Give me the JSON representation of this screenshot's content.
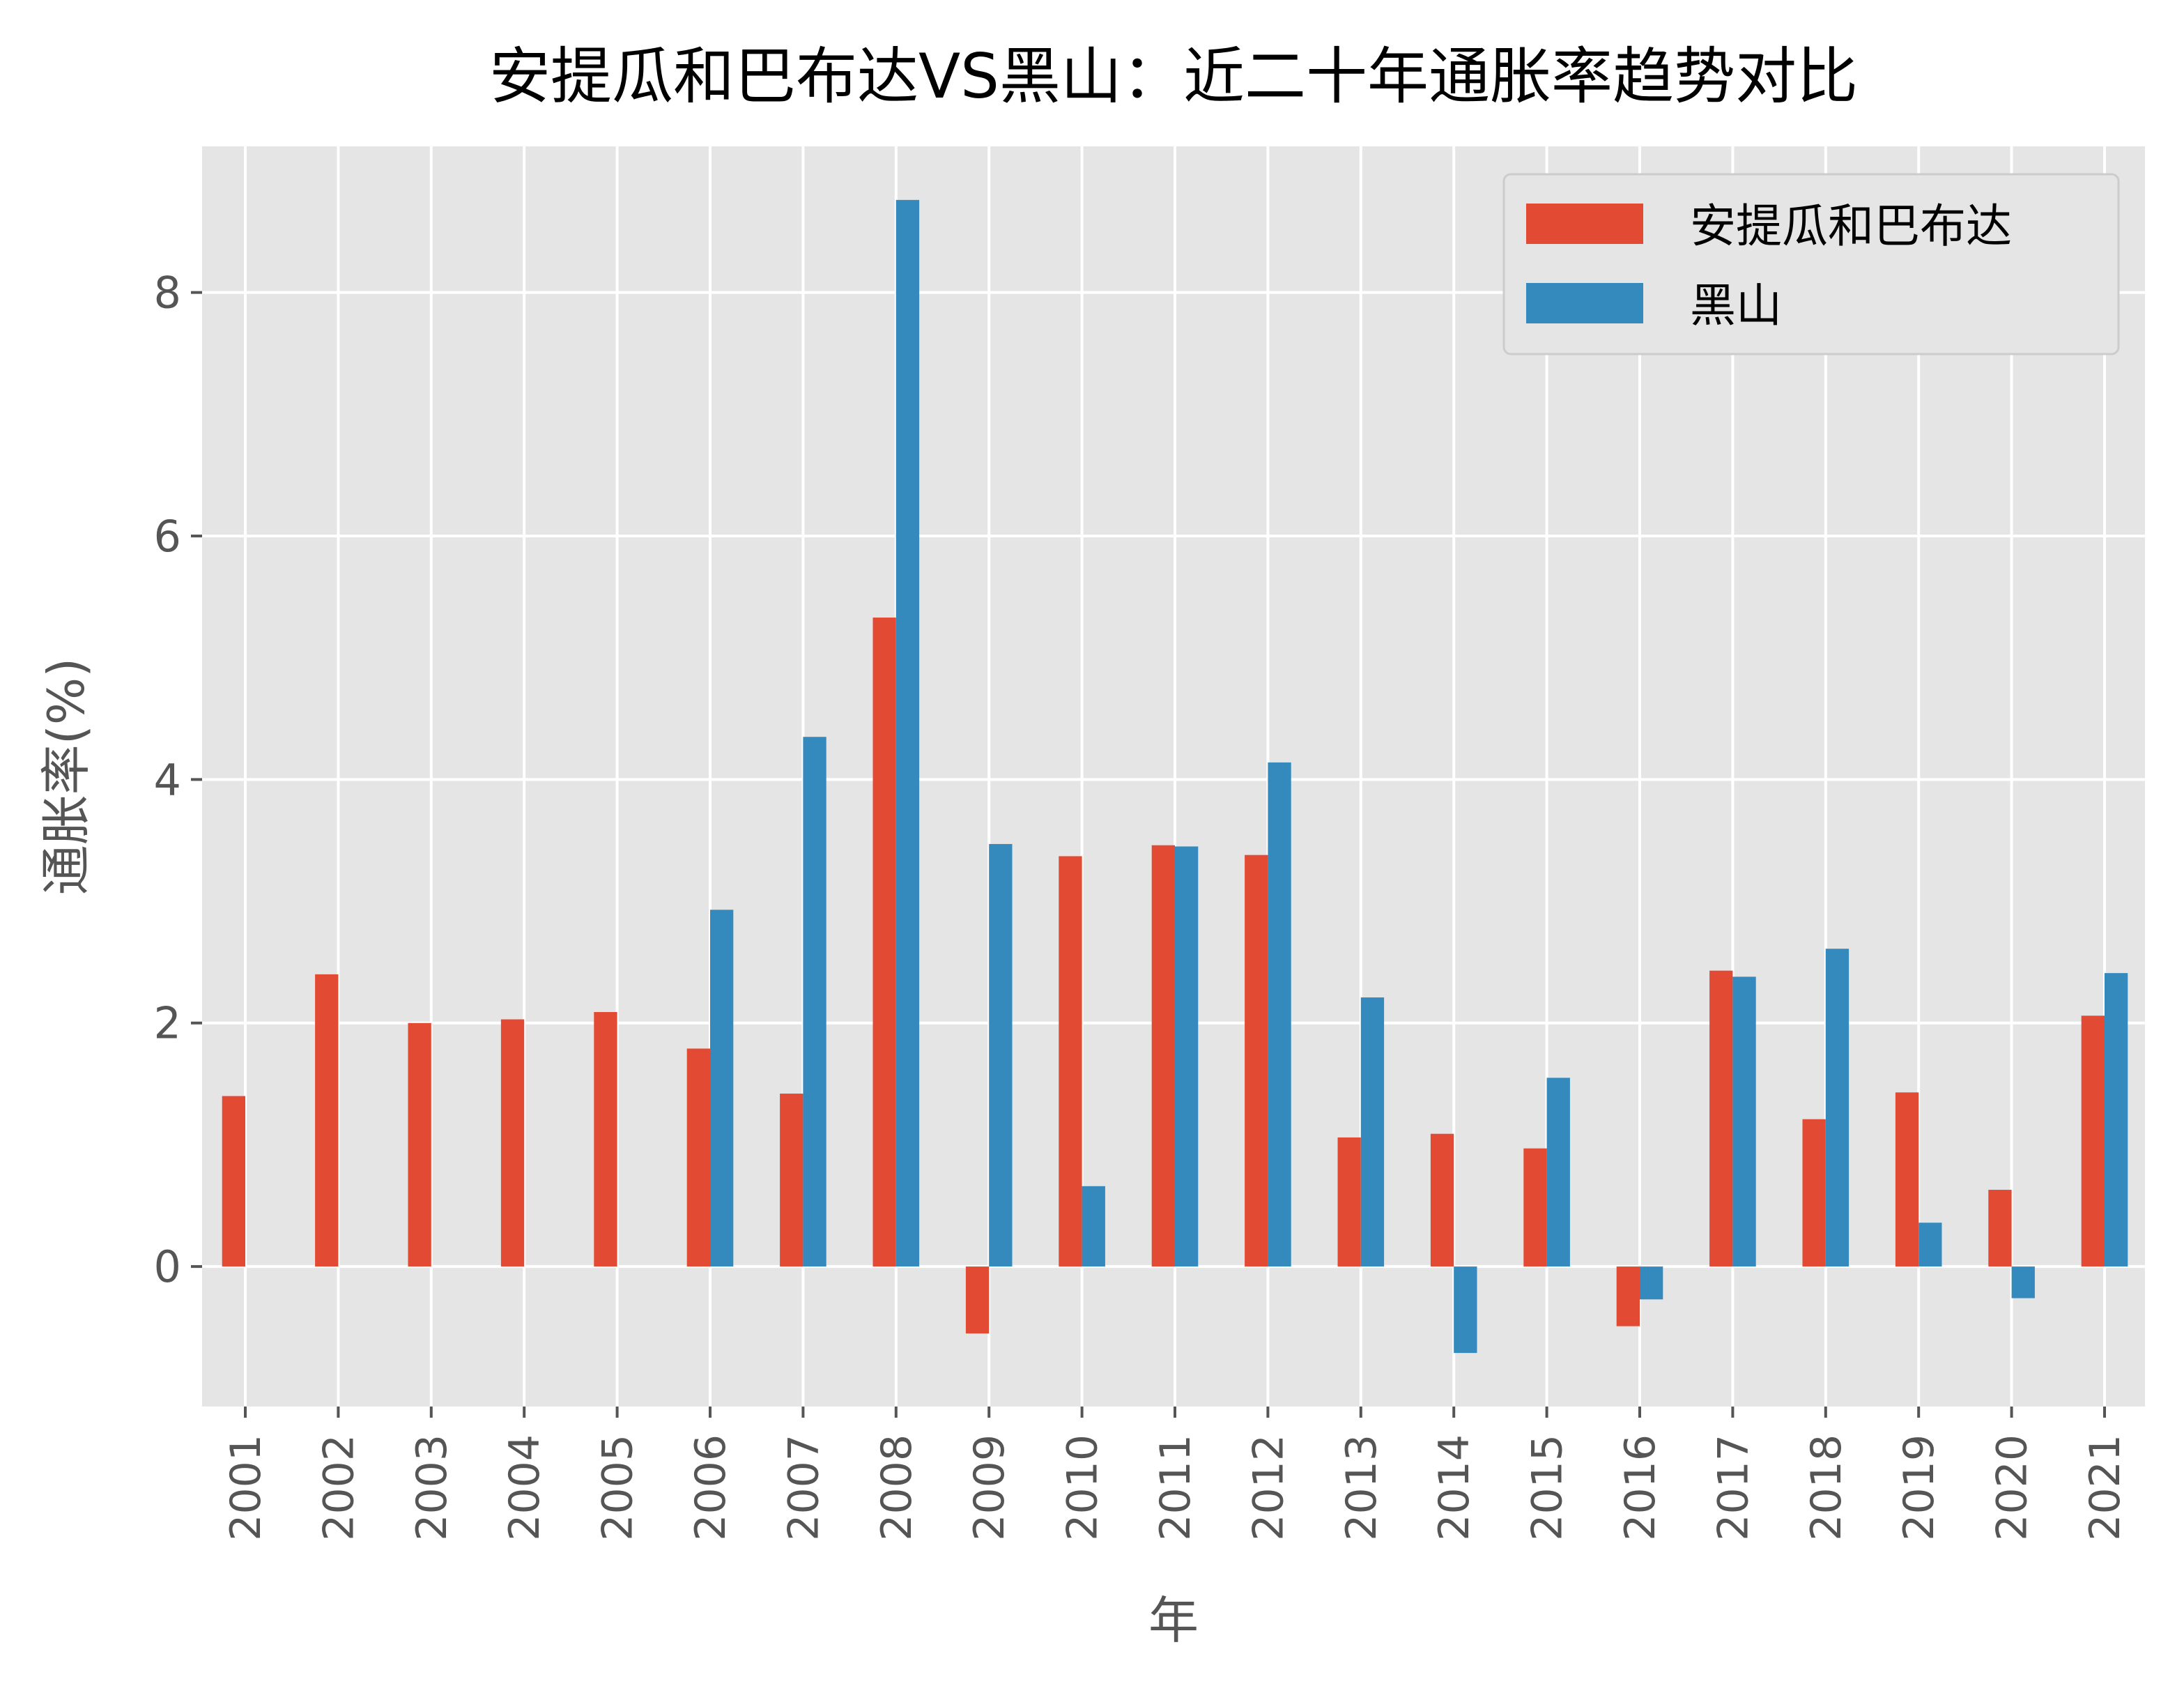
{
  "chart_data": {
    "type": "bar",
    "title": "安提瓜和巴布达VS黑山：近二十年通胀率趋势对比",
    "xlabel": "年",
    "ylabel": "通胀率(%)",
    "ylim": [
      -1.15,
      9.2
    ],
    "yticks": [
      0,
      2,
      4,
      6,
      8
    ],
    "grid": true,
    "legend_position": "top-right",
    "categories": [
      "2001",
      "2002",
      "2003",
      "2004",
      "2005",
      "2006",
      "2007",
      "2008",
      "2009",
      "2010",
      "2011",
      "2012",
      "2013",
      "2014",
      "2015",
      "2016",
      "2017",
      "2018",
      "2019",
      "2020",
      "2021"
    ],
    "series": [
      {
        "name": "安提瓜和巴布达",
        "color": "#E24A33",
        "values": [
          1.4,
          2.4,
          2.0,
          2.03,
          2.09,
          1.79,
          1.42,
          5.33,
          -0.55,
          3.37,
          3.46,
          3.38,
          1.06,
          1.09,
          0.97,
          -0.49,
          2.43,
          1.21,
          1.43,
          0.63,
          2.06
        ]
      },
      {
        "name": "黑山",
        "color": "#348ABD",
        "values": [
          null,
          null,
          null,
          null,
          null,
          2.93,
          4.35,
          8.76,
          3.47,
          0.66,
          3.45,
          4.14,
          2.21,
          -0.71,
          1.55,
          -0.27,
          2.38,
          2.61,
          0.36,
          -0.26,
          2.41
        ]
      }
    ]
  },
  "style": {
    "plot_background": "#E5E5E5",
    "grid_color": "#FFFFFF",
    "text_color": "#555555",
    "title_color": "#000000"
  }
}
